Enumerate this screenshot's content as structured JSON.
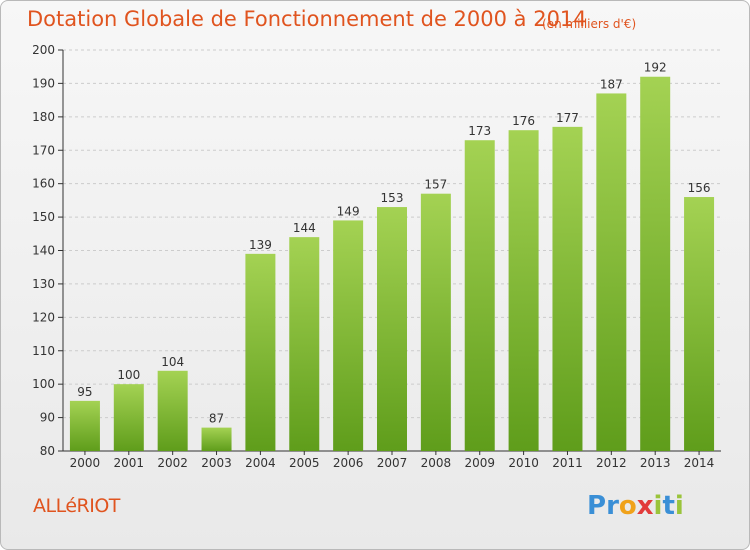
{
  "header": {
    "title": "Dotation Globale de Fonctionnement de 2000 à 2014",
    "unit": "(en milliers d'€)"
  },
  "footer": {
    "commune": "ALLéRIOT",
    "logo": {
      "letters": [
        "P",
        "r",
        "o",
        "x",
        "i",
        "t",
        "i"
      ],
      "colors": [
        "#3a8fd6",
        "#3a8fd6",
        "#f0a21a",
        "#e23b3b",
        "#9ac43b",
        "#3a8fd6",
        "#9ac43b"
      ]
    }
  },
  "colors": {
    "accent": "#e0541f",
    "bar_top": "#a4d253",
    "bar_bottom": "#5f9d1b",
    "grid": "#cccccc",
    "axis": "#333333"
  },
  "chart_data": {
    "type": "bar",
    "categories": [
      "2000",
      "2001",
      "2002",
      "2003",
      "2004",
      "2005",
      "2006",
      "2007",
      "2008",
      "2009",
      "2010",
      "2011",
      "2012",
      "2013",
      "2014"
    ],
    "values": [
      95,
      100,
      104,
      87,
      139,
      144,
      149,
      153,
      157,
      173,
      176,
      177,
      187,
      192,
      156
    ],
    "yticks": [
      80,
      90,
      100,
      110,
      120,
      130,
      140,
      150,
      160,
      170,
      180,
      190,
      200
    ],
    "ylim": [
      80,
      200
    ],
    "grid": true,
    "show_value_labels": true
  }
}
